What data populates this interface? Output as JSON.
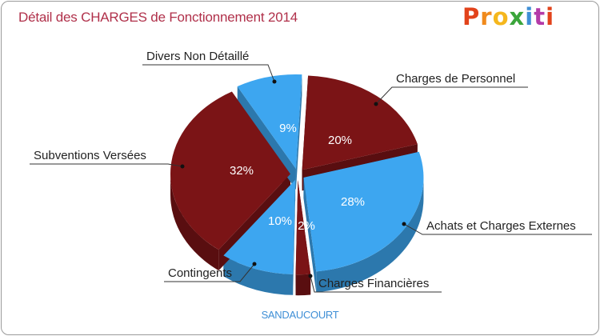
{
  "header": {
    "title": "Détail des CHARGES de Fonctionnement 2014",
    "logo": "Proxiti",
    "logo_colors": [
      "#e2431b",
      "#f08a1c",
      "#f5b71d",
      "#3ba53b",
      "#3f8fd6",
      "#b43aa8",
      "#e2431b"
    ]
  },
  "chart_data": {
    "type": "pie",
    "title": "Détail des CHARGES de Fonctionnement 2014",
    "subtitle": "SANDAUCOURT",
    "slices": [
      {
        "label": "Charges de Personnel",
        "value": 20,
        "pct_label": "20%",
        "color": "#7b1416"
      },
      {
        "label": "Achats et Charges Externes",
        "value": 28,
        "pct_label": "28%",
        "color": "#3da6f0"
      },
      {
        "label": "Charges Financières",
        "value": 2,
        "pct_label": "2%",
        "color": "#7b1416"
      },
      {
        "label": "Contingents",
        "value": 10,
        "pct_label": "10%",
        "color": "#3da6f0"
      },
      {
        "label": "Subventions Versées",
        "value": 32,
        "pct_label": "32%",
        "color": "#7b1416"
      },
      {
        "label": "Divers Non Détaillé",
        "value": 9,
        "pct_label": "9%",
        "color": "#3da6f0"
      }
    ]
  }
}
